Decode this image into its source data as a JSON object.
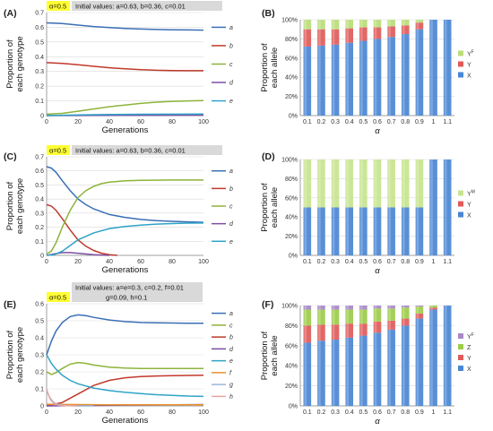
{
  "colors": {
    "a": "#3a6fb5",
    "b": "#c0392b",
    "c": "#8db33a",
    "d": "#7b4fa3",
    "e": "#2fa3c7",
    "f": "#e8922d",
    "g": "#9bb6d8",
    "h": "#e7a6a0",
    "X": "#4a86d4",
    "Y": "#e05a5a",
    "Z": "#9ccc4a",
    "YF": "#b9dd78",
    "YM": "#c8e48e",
    "YFpurple": "#a887c7",
    "alpha_box": "#ffff33",
    "info_box": "#d9d9d9"
  },
  "chart_data": [
    {
      "type": "line",
      "panel": "(A)",
      "alpha_label": "α=0.5",
      "info_label": "Initial values: a=0.63, b=0.36, c=0.01",
      "xlabel": "Generations",
      "ylabel_lines": [
        "Proportion of",
        "each genotype"
      ],
      "xlim": [
        0,
        100
      ],
      "ylim": [
        0,
        0.7
      ],
      "xticks": [
        0,
        20,
        40,
        60,
        80,
        100
      ],
      "yticks": [
        0,
        0.1,
        0.2,
        0.3,
        0.4,
        0.5,
        0.6,
        0.7
      ],
      "ytick_labels": [
        "0",
        "0.1",
        "0.2",
        "0.3",
        "0.4",
        "0.5",
        "0.6",
        "0.7"
      ],
      "series": [
        {
          "name": "a",
          "color_key": "a",
          "x": [
            0,
            10,
            20,
            30,
            40,
            50,
            60,
            70,
            80,
            90,
            100
          ],
          "y": [
            0.63,
            0.625,
            0.615,
            0.605,
            0.598,
            0.592,
            0.588,
            0.585,
            0.583,
            0.582,
            0.581
          ]
        },
        {
          "name": "b",
          "color_key": "b",
          "x": [
            0,
            10,
            20,
            30,
            40,
            50,
            60,
            70,
            80,
            90,
            100
          ],
          "y": [
            0.36,
            0.355,
            0.345,
            0.335,
            0.325,
            0.318,
            0.312,
            0.308,
            0.306,
            0.305,
            0.305
          ]
        },
        {
          "name": "c",
          "color_key": "c",
          "x": [
            0,
            10,
            20,
            30,
            40,
            50,
            60,
            70,
            80,
            90,
            100
          ],
          "y": [
            0.01,
            0.015,
            0.03,
            0.045,
            0.06,
            0.072,
            0.083,
            0.091,
            0.097,
            0.1,
            0.102
          ]
        },
        {
          "name": "d",
          "color_key": "d",
          "x": [
            0,
            50,
            100
          ],
          "y": [
            0.0,
            0.002,
            0.003
          ]
        },
        {
          "name": "e",
          "color_key": "e",
          "x": [
            0,
            20,
            40,
            60,
            80,
            100
          ],
          "y": [
            0.0,
            0.004,
            0.007,
            0.009,
            0.01,
            0.011
          ]
        }
      ]
    },
    {
      "type": "bar",
      "stacked": true,
      "panel": "(B)",
      "xlabel": "α",
      "ylabel_lines": [
        "Proportion of",
        "each allele"
      ],
      "ylim": [
        0,
        100
      ],
      "yticks": [
        0,
        20,
        40,
        60,
        80,
        100
      ],
      "ytick_labels": [
        "0%",
        "20%",
        "40%",
        "60%",
        "80%",
        "100%"
      ],
      "categories": [
        "0.1",
        "0.2",
        "0.3",
        "0.4",
        "0.5",
        "0.6",
        "0.7",
        "0.8",
        "0.9",
        "1",
        "1.1"
      ],
      "legend": [
        {
          "name": "YF",
          "label_main": "Y",
          "label_sup": "F",
          "color_key": "YF"
        },
        {
          "name": "Y",
          "label_main": "Y",
          "label_sup": "",
          "color_key": "Y"
        },
        {
          "name": "X",
          "label_main": "X",
          "label_sup": "",
          "color_key": "X"
        }
      ],
      "series": [
        {
          "name": "X",
          "color_key": "X",
          "values": [
            72,
            73,
            74,
            76,
            78,
            80,
            82,
            85,
            90,
            100,
            100
          ]
        },
        {
          "name": "Y",
          "color_key": "Y",
          "values": [
            18,
            17,
            16,
            15,
            14,
            12,
            11,
            9,
            7,
            0,
            0
          ]
        },
        {
          "name": "YF",
          "color_key": "YF",
          "values": [
            10,
            10,
            10,
            9,
            8,
            8,
            7,
            6,
            3,
            0,
            0
          ]
        }
      ]
    },
    {
      "type": "line",
      "panel": "(C)",
      "alpha_label": "α=0.5",
      "info_label": "Initial values: a=0.63, b=0.36, c=0.01",
      "xlabel": "Generations",
      "ylabel_lines": [
        "Proportion of",
        "each genotype"
      ],
      "xlim": [
        0,
        100
      ],
      "ylim": [
        0,
        0.7
      ],
      "xticks": [
        0,
        20,
        40,
        60,
        80,
        100
      ],
      "yticks": [
        0,
        0.1,
        0.2,
        0.3,
        0.4,
        0.5,
        0.6,
        0.7
      ],
      "ytick_labels": [
        "0",
        "0.1",
        "0.2",
        "0.3",
        "0.4",
        "0.5",
        "0.6",
        "0.7"
      ],
      "series": [
        {
          "name": "a",
          "color_key": "a",
          "x": [
            0,
            3,
            6,
            10,
            15,
            20,
            25,
            30,
            40,
            50,
            60,
            70,
            80,
            90,
            100
          ],
          "y": [
            0.63,
            0.62,
            0.59,
            0.53,
            0.46,
            0.4,
            0.36,
            0.33,
            0.29,
            0.27,
            0.255,
            0.247,
            0.242,
            0.238,
            0.235
          ]
        },
        {
          "name": "b",
          "color_key": "b",
          "x": [
            0,
            3,
            6,
            10,
            15,
            20,
            25,
            30,
            35,
            40,
            45
          ],
          "y": [
            0.36,
            0.35,
            0.32,
            0.26,
            0.18,
            0.11,
            0.065,
            0.035,
            0.015,
            0.005,
            0.0
          ]
        },
        {
          "name": "c",
          "color_key": "c",
          "x": [
            0,
            3,
            6,
            10,
            15,
            20,
            25,
            30,
            35,
            40,
            50,
            60,
            80,
            100
          ],
          "y": [
            0.01,
            0.03,
            0.09,
            0.2,
            0.32,
            0.41,
            0.46,
            0.49,
            0.51,
            0.52,
            0.53,
            0.533,
            0.535,
            0.535
          ]
        },
        {
          "name": "d",
          "color_key": "d",
          "x": [
            0,
            5,
            10,
            15,
            20,
            30,
            40
          ],
          "y": [
            0.0,
            0.01,
            0.02,
            0.02,
            0.015,
            0.005,
            0.0
          ]
        },
        {
          "name": "e",
          "color_key": "e",
          "x": [
            0,
            5,
            10,
            15,
            20,
            30,
            40,
            50,
            60,
            70,
            80,
            90,
            100
          ],
          "y": [
            0.0,
            0.005,
            0.03,
            0.07,
            0.11,
            0.16,
            0.19,
            0.205,
            0.215,
            0.222,
            0.226,
            0.229,
            0.23
          ]
        }
      ]
    },
    {
      "type": "bar",
      "stacked": true,
      "panel": "(D)",
      "xlabel": "α",
      "ylabel_lines": [
        "Proportion of",
        "each allele"
      ],
      "ylim": [
        0,
        100
      ],
      "yticks": [
        0,
        20,
        40,
        60,
        80,
        100
      ],
      "ytick_labels": [
        "0%",
        "20%",
        "40%",
        "60%",
        "80%",
        "100%"
      ],
      "categories": [
        "0.1",
        "0.2",
        "0.3",
        "0.4",
        "0.5",
        "0.6",
        "0.7",
        "0.8",
        "0.9",
        "1",
        "1.1"
      ],
      "legend": [
        {
          "name": "YM",
          "label_main": "Y",
          "label_sup": "M",
          "color_key": "YM"
        },
        {
          "name": "Y",
          "label_main": "Y",
          "label_sup": "",
          "color_key": "Y"
        },
        {
          "name": "X",
          "label_main": "X",
          "label_sup": "",
          "color_key": "X"
        }
      ],
      "series": [
        {
          "name": "X",
          "color_key": "X",
          "values": [
            50,
            50,
            50,
            50,
            50,
            50,
            50,
            50,
            50,
            100,
            100
          ]
        },
        {
          "name": "Y",
          "color_key": "Y",
          "values": [
            0,
            0,
            0,
            0,
            0,
            0,
            0,
            0,
            0,
            0,
            0
          ]
        },
        {
          "name": "YM",
          "color_key": "YM",
          "values": [
            50,
            50,
            50,
            50,
            50,
            50,
            50,
            50,
            50,
            0,
            0
          ]
        }
      ]
    },
    {
      "type": "line",
      "panel": "(E)",
      "alpha_label": "α=0.5",
      "info_label_lines": [
        "Initial values: a=e=0.3, c=0.2, f=0.01",
        "g=0.09, h=0.1"
      ],
      "xlabel": "Generations",
      "ylabel_lines": [
        "Proportion of",
        "each genotype"
      ],
      "xlim": [
        0,
        100
      ],
      "ylim": [
        0,
        0.6
      ],
      "xticks": [
        0,
        20,
        40,
        60,
        80,
        100
      ],
      "yticks": [
        0,
        0.1,
        0.2,
        0.3,
        0.4,
        0.5,
        0.6
      ],
      "ytick_labels": [
        "0",
        "0.1",
        "0.2",
        "0.3",
        "0.4",
        "0.5",
        "0.6"
      ],
      "series": [
        {
          "name": "a",
          "color_key": "a",
          "x": [
            0,
            3,
            6,
            10,
            15,
            20,
            25,
            30,
            40,
            50,
            60,
            70,
            80,
            90,
            100
          ],
          "y": [
            0.3,
            0.38,
            0.44,
            0.49,
            0.525,
            0.535,
            0.53,
            0.52,
            0.505,
            0.495,
            0.49,
            0.488,
            0.487,
            0.486,
            0.486
          ]
        },
        {
          "name": "c",
          "color_key": "c",
          "x": [
            0,
            3,
            6,
            10,
            15,
            20,
            25,
            30,
            40,
            50,
            60,
            70,
            80,
            100
          ],
          "y": [
            0.2,
            0.185,
            0.195,
            0.22,
            0.245,
            0.255,
            0.25,
            0.24,
            0.228,
            0.222,
            0.22,
            0.22,
            0.22,
            0.22
          ]
        },
        {
          "name": "b",
          "color_key": "b",
          "x": [
            0,
            10,
            20,
            30,
            40,
            50,
            60,
            70,
            80,
            90,
            100
          ],
          "y": [
            0.0,
            0.02,
            0.07,
            0.12,
            0.15,
            0.165,
            0.172,
            0.176,
            0.178,
            0.179,
            0.18
          ]
        },
        {
          "name": "d",
          "color_key": "d",
          "x": [
            0,
            50,
            100
          ],
          "y": [
            0.0,
            0.005,
            0.008
          ]
        },
        {
          "name": "e",
          "color_key": "e",
          "x": [
            0,
            3,
            6,
            10,
            15,
            20,
            30,
            40,
            50,
            60,
            70,
            80,
            90,
            100
          ],
          "y": [
            0.3,
            0.25,
            0.215,
            0.18,
            0.15,
            0.13,
            0.105,
            0.09,
            0.08,
            0.072,
            0.066,
            0.062,
            0.058,
            0.056
          ]
        },
        {
          "name": "f",
          "color_key": "f",
          "x": [
            0,
            20,
            40,
            60,
            80,
            100
          ],
          "y": [
            0.01,
            0.008,
            0.007,
            0.007,
            0.007,
            0.007
          ]
        },
        {
          "name": "g",
          "color_key": "g",
          "x": [
            0,
            2,
            4,
            6,
            10,
            15,
            20,
            30
          ],
          "y": [
            0.09,
            0.05,
            0.025,
            0.012,
            0.004,
            0.001,
            0.0,
            0.0
          ]
        },
        {
          "name": "h",
          "color_key": "h",
          "x": [
            0,
            1,
            2,
            3,
            5,
            8,
            12,
            20
          ],
          "y": [
            0.1,
            0.07,
            0.045,
            0.03,
            0.012,
            0.004,
            0.001,
            0.0
          ]
        }
      ]
    },
    {
      "type": "bar",
      "stacked": true,
      "panel": "(F)",
      "xlabel": "α",
      "ylabel_lines": [
        "Proportion of",
        "each allele"
      ],
      "ylim": [
        0,
        100
      ],
      "yticks": [
        0,
        20,
        40,
        60,
        80,
        100
      ],
      "ytick_labels": [
        "0%",
        "20%",
        "40%",
        "60%",
        "80%",
        "100%"
      ],
      "categories": [
        "0.1",
        "0.2",
        "0.3",
        "0.4",
        "0.5",
        "0.6",
        "0.7",
        "0.8",
        "0.9",
        "1",
        "1.1"
      ],
      "legend": [
        {
          "name": "YF",
          "label_main": "Y",
          "label_sup": "F",
          "color_key": "YFpurple"
        },
        {
          "name": "Z",
          "label_main": "Z",
          "label_sup": "",
          "color_key": "Z"
        },
        {
          "name": "Y",
          "label_main": "Y",
          "label_sup": "",
          "color_key": "Y"
        },
        {
          "name": "X",
          "label_main": "X",
          "label_sup": "",
          "color_key": "X"
        }
      ],
      "series": [
        {
          "name": "X",
          "color_key": "X",
          "values": [
            63,
            65,
            66,
            68,
            70,
            73,
            76,
            80,
            87,
            96,
            100
          ]
        },
        {
          "name": "Y",
          "color_key": "Y",
          "values": [
            17,
            16,
            15,
            14,
            12,
            11,
            9,
            7,
            5,
            2,
            0
          ]
        },
        {
          "name": "Z",
          "color_key": "Z",
          "values": [
            16,
            15,
            15,
            14,
            14,
            13,
            12,
            11,
            7,
            2,
            0
          ]
        },
        {
          "name": "YF",
          "color_key": "YFpurple",
          "values": [
            4,
            4,
            4,
            4,
            4,
            3,
            3,
            2,
            1,
            0,
            0
          ]
        }
      ]
    }
  ]
}
